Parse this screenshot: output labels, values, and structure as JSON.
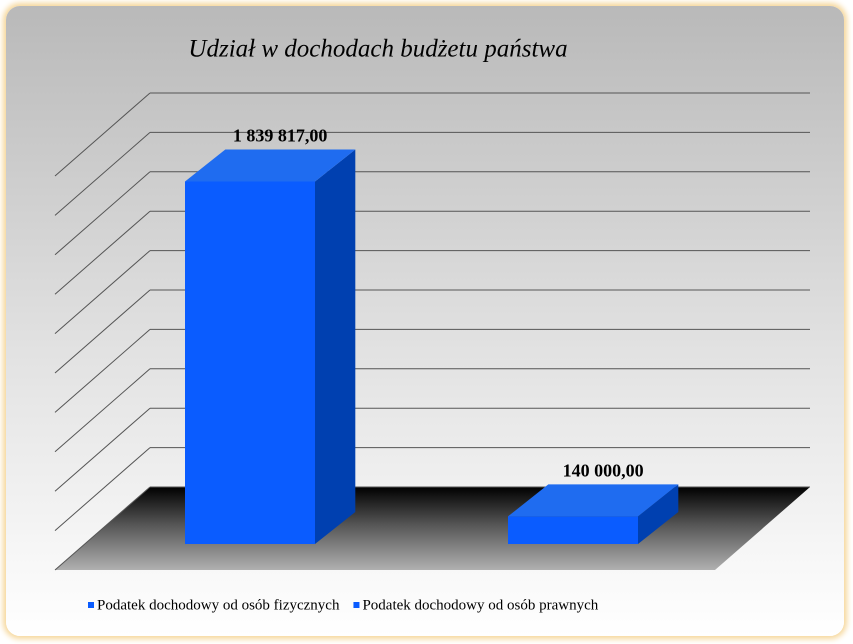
{
  "chart_data": {
    "type": "bar3d",
    "title": "Udział w dochodach budżetu państwa",
    "series": [
      {
        "name": "Podatek dochodowy od osób fizycznych",
        "color": "#0a5cff",
        "values": [
          1839817
        ],
        "value_labels": [
          "1 839 817,00"
        ]
      },
      {
        "name": "Podatek dochodowy od osób prawnych",
        "color": "#0a5cff",
        "values": [
          140000
        ],
        "value_labels": [
          "140 000,00"
        ]
      }
    ],
    "ylim": [
      0,
      2000000
    ],
    "yticks": [
      0,
      200000,
      400000,
      600000,
      800000,
      1000000,
      1200000,
      1400000,
      1600000,
      1800000,
      2000000
    ],
    "grid": true,
    "legend": "bottom"
  }
}
